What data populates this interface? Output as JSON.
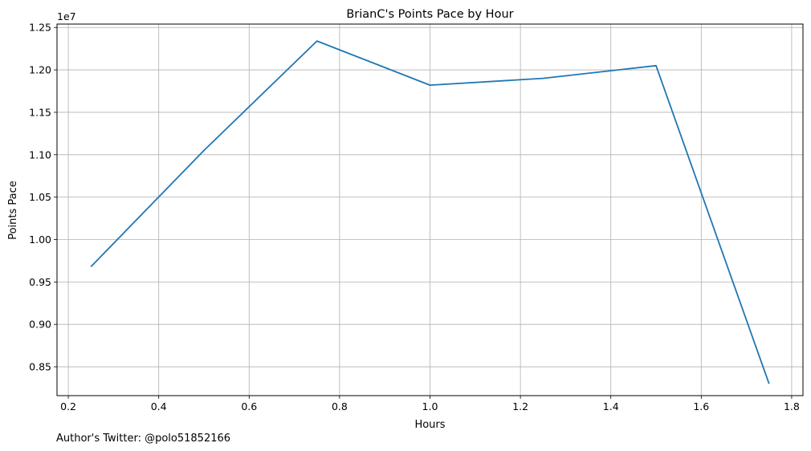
{
  "chart_data": {
    "type": "line",
    "title": "BrianC's Points Pace by Hour",
    "xlabel": "Hours",
    "ylabel": "Points Pace",
    "y_offset_label": "1e7",
    "x": [
      0.25,
      0.5,
      0.75,
      1.0,
      1.25,
      1.5,
      1.75
    ],
    "series": [
      {
        "values": [
          9680000,
          11050000,
          12340000,
          11820000,
          11900000,
          12050000,
          8300000
        ],
        "color": "#1f77b4"
      }
    ],
    "xlim": [
      0.175,
      1.825
    ],
    "ylim": [
      8160000,
      12540000
    ],
    "x_ticks": [
      0.2,
      0.4,
      0.6,
      0.8,
      1.0,
      1.2,
      1.4,
      1.6,
      1.8
    ],
    "x_tick_labels": [
      "0.2",
      "0.4",
      "0.6",
      "0.8",
      "1.0",
      "1.2",
      "1.4",
      "1.6",
      "1.8"
    ],
    "y_ticks": [
      8500000,
      9000000,
      9500000,
      10000000,
      10500000,
      11000000,
      11500000,
      12000000,
      12500000
    ],
    "y_tick_labels": [
      "0.85",
      "0.90",
      "0.95",
      "1.00",
      "1.05",
      "1.10",
      "1.15",
      "1.20",
      "1.25"
    ],
    "grid": true,
    "legend": false
  },
  "footer": {
    "text": "Author's Twitter: @polo51852166"
  },
  "colors": {
    "grid": "#b0b0b0",
    "axes": "#000000",
    "background": "#ffffff"
  }
}
